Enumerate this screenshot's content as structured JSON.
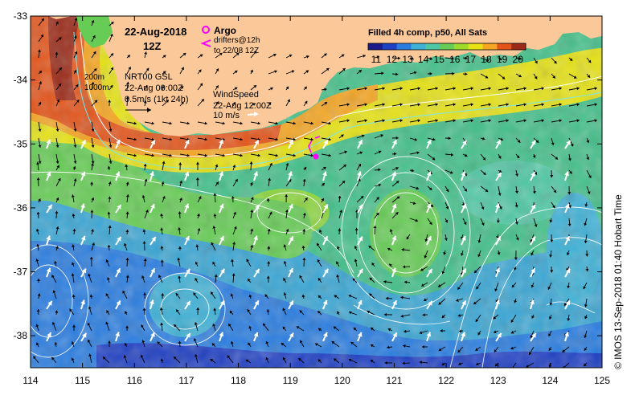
{
  "map": {
    "date": "22-Aug-2018",
    "time": "12Z",
    "product_title": "Filled 4h comp, p50, All Sats",
    "colorbar": {
      "ticks": [
        "11",
        "12",
        "13",
        "14",
        "15",
        "16",
        "17",
        "18",
        "19",
        "20"
      ],
      "min": 10.5,
      "max": 20.5,
      "colors": [
        "#1b1b8c",
        "#1f3fc4",
        "#2a7de0",
        "#3fb1d6",
        "#4fc7a3",
        "#66cc55",
        "#9fdb2a",
        "#e6e215",
        "#f5a623",
        "#e3541a",
        "#9b2a18"
      ]
    },
    "lon_labels": [
      "114",
      "115",
      "116",
      "117",
      "118",
      "119",
      "120",
      "121",
      "122",
      "123",
      "124",
      "125"
    ],
    "lat_labels": [
      "-33",
      "-34",
      "-35",
      "-36",
      "-37",
      "-38"
    ],
    "lon_range": [
      114,
      125
    ],
    "lat_range": [
      -38.5,
      -33
    ],
    "land_color": "#fbc999",
    "argo": {
      "label": "Argo",
      "color": "#ff00ff"
    },
    "drifters": {
      "label": "drifters@12h",
      "sublabel": "to 22/08 12Z"
    },
    "isobaths": {
      "line1": "200m",
      "line2": "1000m"
    },
    "currents": {
      "line1": "NRT00 GSL",
      "line2": "22-Aug 00:00Z",
      "line3": "0.5m/s (1kt 24h)"
    },
    "wind": {
      "title": "WindSpeed",
      "time": "22-Aug 12:00Z",
      "scale": "10 m/s"
    },
    "credit": "© IMOS 13-Sep-2018 01:40 Hobart Time"
  }
}
